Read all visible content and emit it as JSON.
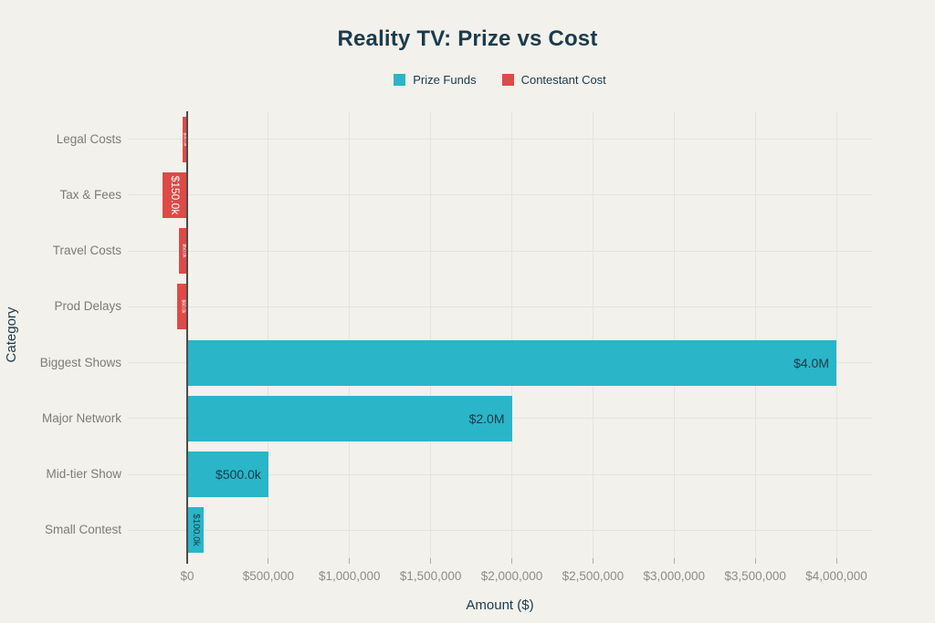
{
  "chart_data": {
    "type": "bar",
    "orientation": "horizontal",
    "title": "Reality TV: Prize vs Cost",
    "xlabel": "Amount ($)",
    "ylabel": "Category",
    "legend_position": "top",
    "grid": true,
    "categories": [
      "Legal Costs",
      "Tax & Fees",
      "Travel Costs",
      "Prod Delays",
      "Biggest Shows",
      "Major Network",
      "Mid-tier Show",
      "Small Contest"
    ],
    "series": [
      {
        "name": "Prize Funds",
        "color": "#2AB5C8",
        "label_color": "#1E3A47",
        "direction": "right",
        "values": [
          null,
          null,
          null,
          null,
          4000000,
          2000000,
          500000,
          100000
        ],
        "data_labels": [
          null,
          null,
          null,
          null,
          "$4.0M",
          "$2.0M",
          "$500.0k",
          "$100.0k"
        ]
      },
      {
        "name": "Contestant Cost",
        "color": "#DE4A47",
        "label_color": "#FFFFFF",
        "direction": "left",
        "values": [
          30000,
          150000,
          50000,
          60000,
          null,
          null,
          null,
          null
        ],
        "data_labels": [
          "$30.0k",
          "$150.0k",
          "$50.0k",
          "$60.0k",
          null,
          null,
          null,
          null
        ]
      }
    ],
    "x_ticks": [
      {
        "value": 0,
        "label": "$0"
      },
      {
        "value": 500000,
        "label": "$500,000"
      },
      {
        "value": 1000000,
        "label": "$1,000,000"
      },
      {
        "value": 1500000,
        "label": "$1,500,000"
      },
      {
        "value": 2000000,
        "label": "$2,000,000"
      },
      {
        "value": 2500000,
        "label": "$2,500,000"
      },
      {
        "value": 3000000,
        "label": "$3,000,000"
      },
      {
        "value": 3500000,
        "label": "$3,500,000"
      },
      {
        "value": 4000000,
        "label": "$4,000,000"
      }
    ],
    "xlim": [
      0,
      4000000
    ],
    "notes": "Contestant Cost bars extend left from the $0 axis; value labels inside narrow bars are rotated 90 degrees"
  }
}
